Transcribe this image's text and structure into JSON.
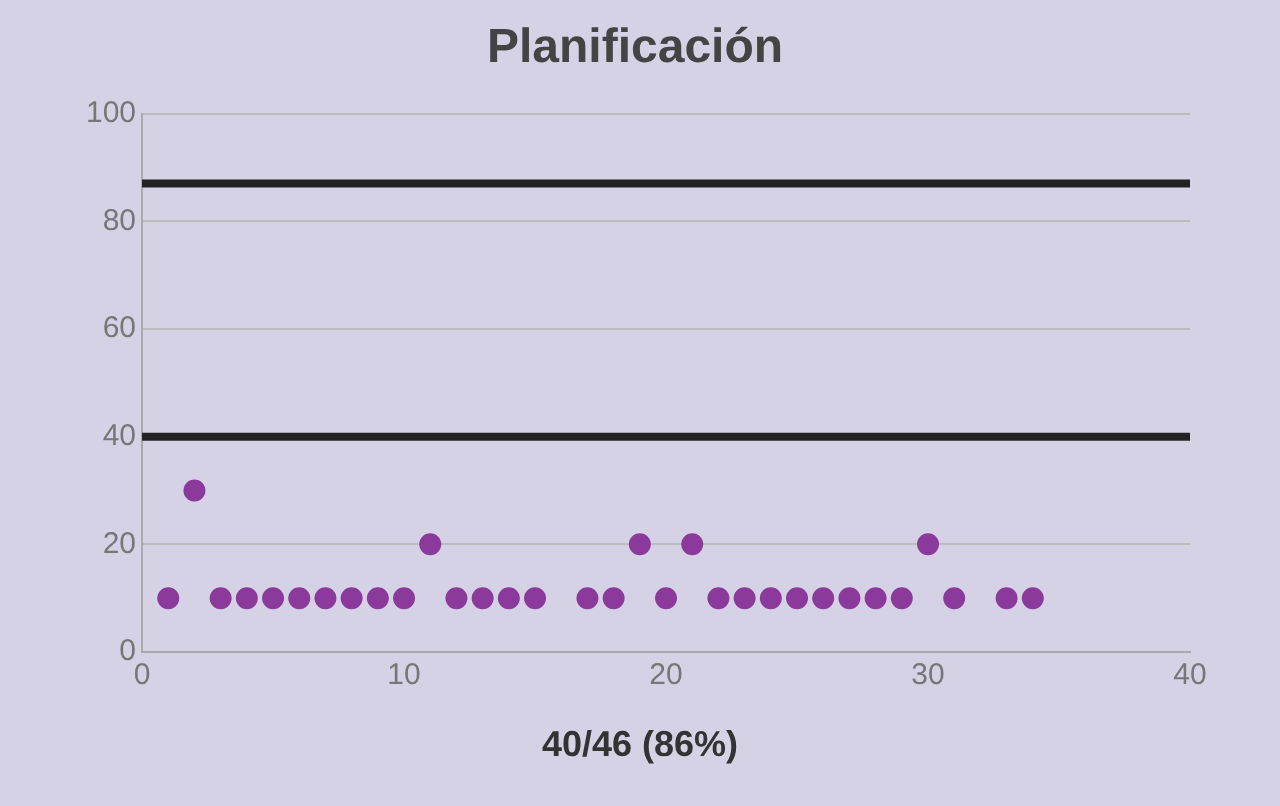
{
  "chart_data": {
    "type": "scatter",
    "title": "Planificación",
    "x": [
      1,
      2,
      3,
      4,
      5,
      6,
      7,
      8,
      9,
      10,
      11,
      12,
      13,
      14,
      15,
      17,
      18,
      19,
      20,
      21,
      22,
      23,
      24,
      25,
      26,
      27,
      28,
      29,
      30,
      31,
      33,
      34
    ],
    "series": [
      {
        "color": "#8b3a9c",
        "values": [
          10,
          30,
          10,
          10,
          10,
          10,
          10,
          10,
          10,
          10,
          20,
          10,
          10,
          10,
          10,
          10,
          10,
          20,
          10,
          20,
          10,
          10,
          10,
          10,
          10,
          10,
          10,
          10,
          20,
          10,
          10,
          10
        ]
      }
    ],
    "xlim": [
      0,
      40
    ],
    "xticks": [
      0,
      10,
      20,
      30,
      40
    ],
    "ylim": [
      0,
      100
    ],
    "yticks": [
      0,
      20,
      40,
      60,
      80,
      100
    ],
    "grid": "y",
    "marker": "circle",
    "legend": false,
    "ref_lines": [
      {
        "axis": "y",
        "value": 87,
        "color": "#222222"
      },
      {
        "axis": "y",
        "value": 40,
        "color": "#222222"
      }
    ],
    "annotations": [
      "40/46 (86%)"
    ]
  }
}
